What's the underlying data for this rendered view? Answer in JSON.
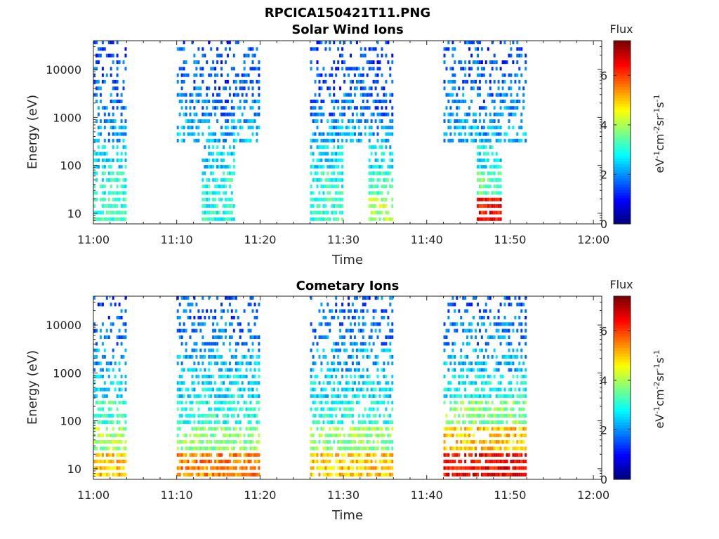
{
  "figure_title": "RPCICA150421T11.PNG",
  "chart_data": [
    {
      "type": "heatmap",
      "title": "Solar Wind Ions",
      "xlabel": "Time",
      "ylabel": "Energy (eV)",
      "xlim": [
        "11:00",
        "12:01"
      ],
      "x_ticks": [
        "11:00",
        "11:10",
        "11:20",
        "11:30",
        "11:40",
        "11:50",
        "12:00"
      ],
      "y_scale": "log",
      "ylim": [
        6,
        40000
      ],
      "y_ticks": [
        "10",
        "100",
        "1000",
        "10000"
      ],
      "colorbar": {
        "title": "Flux",
        "label": "eV-1cm-2sr-1s-1",
        "ticks": [
          "0",
          "2",
          "4",
          "6"
        ],
        "range": [
          0,
          7.4
        ],
        "colormap": "jet"
      },
      "data_bursts": [
        {
          "start": "11:00",
          "end": "11:04",
          "flux_levels_low_to_high_energy": [
            3.2,
            3.0,
            2.6,
            2.1,
            1.8,
            1.6,
            1.5
          ]
        },
        {
          "start": "11:10",
          "end": "11:13",
          "flux_levels_low_to_high_energy": [
            null,
            null,
            null,
            2.3,
            2.0,
            1.8,
            1.6
          ]
        },
        {
          "start": "11:13",
          "end": "11:17",
          "flux_levels_low_to_high_energy": [
            3.0,
            2.9,
            2.5,
            2.1,
            1.7,
            1.5,
            1.4
          ]
        },
        {
          "start": "11:17",
          "end": "11:20",
          "flux_levels_low_to_high_energy": [
            null,
            null,
            null,
            2.2,
            1.9,
            1.7,
            1.6
          ]
        },
        {
          "start": "11:26",
          "end": "11:30",
          "flux_levels_low_to_high_energy": [
            3.2,
            3.0,
            2.6,
            2.1,
            1.7,
            1.5,
            1.4
          ]
        },
        {
          "start": "11:30",
          "end": "11:33",
          "flux_levels_low_to_high_energy": [
            null,
            null,
            null,
            2.2,
            1.9,
            1.7,
            1.5
          ]
        },
        {
          "start": "11:33",
          "end": "11:36",
          "flux_levels_low_to_high_energy": [
            4.0,
            3.2,
            2.6,
            2.1,
            1.7,
            1.5,
            1.4
          ]
        },
        {
          "start": "11:42",
          "end": "11:46",
          "flux_levels_low_to_high_energy": [
            null,
            null,
            null,
            2.2,
            1.9,
            1.7,
            1.6
          ]
        },
        {
          "start": "11:46",
          "end": "11:49",
          "flux_levels_low_to_high_energy": [
            6.5,
            3.5,
            2.7,
            2.1,
            1.7,
            1.5,
            1.4
          ]
        },
        {
          "start": "11:49",
          "end": "11:52",
          "flux_levels_low_to_high_energy": [
            null,
            null,
            null,
            2.3,
            2.0,
            1.8,
            1.6
          ]
        }
      ]
    },
    {
      "type": "heatmap",
      "title": "Cometary Ions",
      "xlabel": "Time",
      "ylabel": "Energy (eV)",
      "xlim": [
        "11:00",
        "12:01"
      ],
      "x_ticks": [
        "11:00",
        "11:10",
        "11:20",
        "11:30",
        "11:40",
        "11:50",
        "12:00"
      ],
      "y_scale": "log",
      "ylim": [
        6,
        40000
      ],
      "y_ticks": [
        "10",
        "100",
        "1000",
        "10000"
      ],
      "colorbar": {
        "title": "Flux",
        "label": "eV-1cm-2sr-1s-1",
        "ticks": [
          "0",
          "2",
          "4",
          "6"
        ],
        "range": [
          0,
          7.4
        ],
        "colormap": "jet"
      },
      "data_bursts": [
        {
          "start": "11:00",
          "end": "11:04",
          "flux_levels_low_to_high_energy": [
            5.0,
            4.0,
            3.2,
            2.6,
            2.1,
            1.7,
            1.5
          ]
        },
        {
          "start": "11:10",
          "end": "11:20",
          "flux_levels_low_to_high_energy": [
            5.5,
            3.8,
            3.0,
            2.6,
            2.3,
            1.8,
            1.6
          ]
        },
        {
          "start": "11:26",
          "end": "11:36",
          "flux_levels_low_to_high_energy": [
            5.0,
            3.8,
            3.0,
            2.6,
            2.2,
            1.8,
            1.6
          ]
        },
        {
          "start": "11:42",
          "end": "11:52",
          "flux_levels_low_to_high_energy": [
            6.5,
            5.0,
            3.8,
            2.8,
            2.3,
            1.9,
            1.6
          ]
        }
      ]
    }
  ]
}
